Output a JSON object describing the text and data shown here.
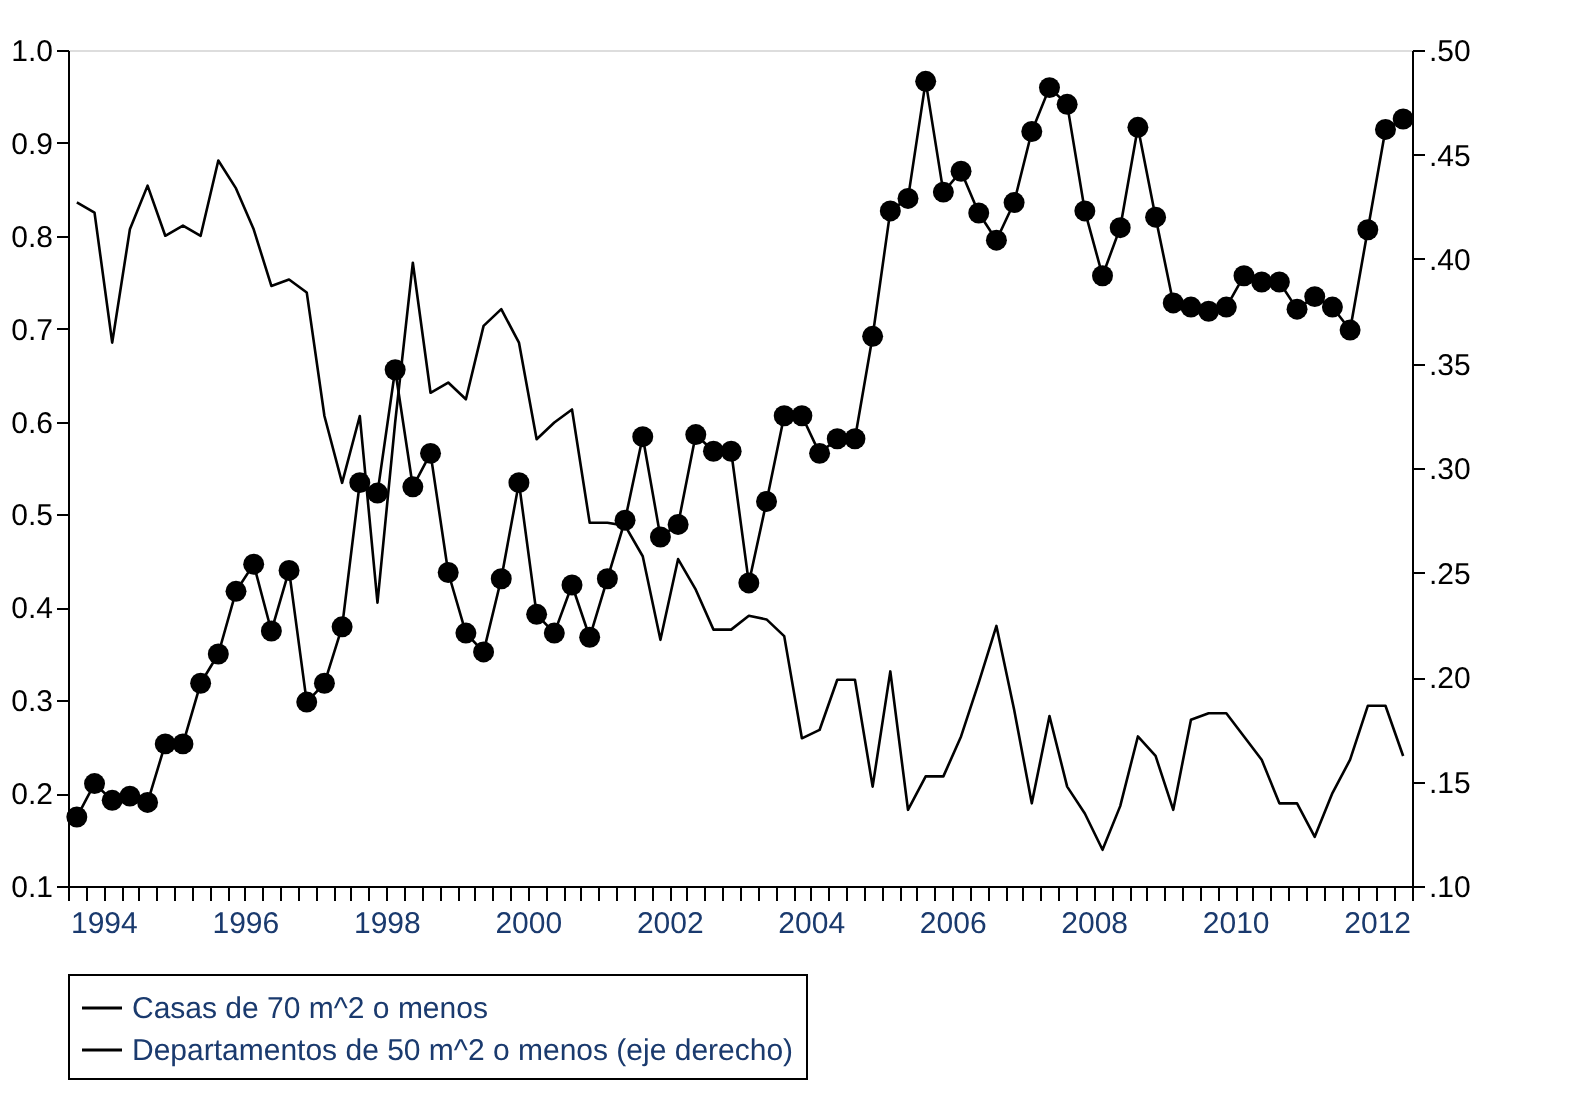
{
  "chart_data": {
    "type": "line",
    "x": [
      1994.125,
      1994.375,
      1994.625,
      1994.875,
      1995.125,
      1995.375,
      1995.625,
      1995.875,
      1996.125,
      1996.375,
      1996.625,
      1996.875,
      1997.125,
      1997.375,
      1997.625,
      1997.875,
      1998.125,
      1998.375,
      1998.625,
      1998.875,
      1999.125,
      1999.375,
      1999.625,
      1999.875,
      2000.125,
      2000.375,
      2000.625,
      2000.875,
      2001.125,
      2001.375,
      2001.625,
      2001.875,
      2002.125,
      2002.375,
      2002.625,
      2002.875,
      2003.125,
      2003.375,
      2003.625,
      2003.875,
      2004.125,
      2004.375,
      2004.625,
      2004.875,
      2005.125,
      2005.375,
      2005.625,
      2005.875,
      2006.125,
      2006.375,
      2006.625,
      2006.875,
      2007.125,
      2007.375,
      2007.625,
      2007.875,
      2008.125,
      2008.375,
      2008.625,
      2008.875,
      2009.125,
      2009.375,
      2009.625,
      2009.875,
      2010.125,
      2010.375,
      2010.625,
      2010.875,
      2011.125,
      2011.375,
      2011.625,
      2011.875,
      2012.125,
      2012.375,
      2012.625,
      2012.875
    ],
    "series": [
      {
        "name": "Casas de 70 m^2 o menos",
        "type": "line",
        "color": "#000000",
        "marker": "none",
        "values": [
          0.836,
          0.825,
          0.685,
          0.807,
          0.854,
          0.8,
          0.811,
          0.8,
          0.881,
          0.851,
          0.807,
          0.746,
          0.753,
          0.739,
          0.606,
          0.534,
          0.606,
          0.405,
          0.599,
          0.771,
          0.631,
          0.642,
          0.624,
          0.703,
          0.721,
          0.685,
          0.581,
          0.599,
          0.613,
          0.491,
          0.491,
          0.488,
          0.455,
          0.365,
          0.452,
          0.419,
          0.376,
          0.376,
          0.391,
          0.387,
          0.369,
          0.259,
          0.268,
          0.322,
          0.322,
          0.207,
          0.331,
          0.182,
          0.218,
          0.218,
          0.261,
          0.319,
          0.38,
          0.29,
          0.189,
          0.283,
          0.207,
          0.178,
          0.139,
          0.186,
          0.261,
          0.24,
          0.182,
          0.279,
          0.286,
          0.286,
          0.261,
          0.236,
          0.189,
          0.189,
          0.153,
          0.2,
          0.236,
          0.294,
          0.294,
          0.24
        ]
      },
      {
        "name": "Departamentos de 50 m^2 o menos (eje derecho)",
        "type": "line",
        "color": "#000000",
        "marker": "circle",
        "axis": "y2",
        "values": [
          0.133,
          0.149,
          0.141,
          0.143,
          0.14,
          0.168,
          0.168,
          0.197,
          0.211,
          0.241,
          0.254,
          0.222,
          0.251,
          0.188,
          0.197,
          0.224,
          0.293,
          0.288,
          0.347,
          0.291,
          0.307,
          0.25,
          0.221,
          0.212,
          0.247,
          0.293,
          0.23,
          0.221,
          0.244,
          0.219,
          0.247,
          0.275,
          0.315,
          0.267,
          0.273,
          0.316,
          0.308,
          0.308,
          0.245,
          0.284,
          0.325,
          0.325,
          0.307,
          0.314,
          0.314,
          0.363,
          0.423,
          0.429,
          0.485,
          0.432,
          0.442,
          0.422,
          0.409,
          0.427,
          0.461,
          0.482,
          0.474,
          0.423,
          0.392,
          0.415,
          0.463,
          0.42,
          0.379,
          0.377,
          0.375,
          0.377,
          0.392,
          0.389,
          0.389,
          0.376,
          0.382,
          0.377,
          0.366,
          0.414,
          0.462,
          0.467
        ]
      }
    ],
    "xlim": [
      1994,
      2013
    ],
    "xticks": [
      {
        "value": 1994,
        "label": null
      },
      {
        "value": 1994.25,
        "label": null
      },
      {
        "value": 1994.5,
        "label": "1994"
      },
      {
        "value": 1994.75,
        "label": null
      },
      {
        "value": 1995,
        "label": null
      },
      {
        "value": 1995.25,
        "label": null
      },
      {
        "value": 1995.5,
        "label": null
      },
      {
        "value": 1995.75,
        "label": null
      },
      {
        "value": 1996,
        "label": null
      },
      {
        "value": 1996.25,
        "label": null
      },
      {
        "value": 1996.5,
        "label": "1996"
      },
      {
        "value": 1996.75,
        "label": null
      },
      {
        "value": 1997,
        "label": null
      },
      {
        "value": 1997.25,
        "label": null
      },
      {
        "value": 1997.5,
        "label": null
      },
      {
        "value": 1997.75,
        "label": null
      },
      {
        "value": 1998,
        "label": null
      },
      {
        "value": 1998.25,
        "label": null
      },
      {
        "value": 1998.5,
        "label": "1998"
      },
      {
        "value": 1998.75,
        "label": null
      },
      {
        "value": 1999,
        "label": null
      },
      {
        "value": 1999.25,
        "label": null
      },
      {
        "value": 1999.5,
        "label": null
      },
      {
        "value": 1999.75,
        "label": null
      },
      {
        "value": 2000,
        "label": null
      },
      {
        "value": 2000.25,
        "label": null
      },
      {
        "value": 2000.5,
        "label": "2000"
      },
      {
        "value": 2000.75,
        "label": null
      },
      {
        "value": 2001,
        "label": null
      },
      {
        "value": 2001.25,
        "label": null
      },
      {
        "value": 2001.5,
        "label": null
      },
      {
        "value": 2001.75,
        "label": null
      },
      {
        "value": 2002,
        "label": null
      },
      {
        "value": 2002.25,
        "label": null
      },
      {
        "value": 2002.5,
        "label": "2002"
      },
      {
        "value": 2002.75,
        "label": null
      },
      {
        "value": 2003,
        "label": null
      },
      {
        "value": 2003.25,
        "label": null
      },
      {
        "value": 2003.5,
        "label": null
      },
      {
        "value": 2003.75,
        "label": null
      },
      {
        "value": 2004,
        "label": null
      },
      {
        "value": 2004.25,
        "label": null
      },
      {
        "value": 2004.5,
        "label": "2004"
      },
      {
        "value": 2004.75,
        "label": null
      },
      {
        "value": 2005,
        "label": null
      },
      {
        "value": 2005.25,
        "label": null
      },
      {
        "value": 2005.5,
        "label": null
      },
      {
        "value": 2005.75,
        "label": null
      },
      {
        "value": 2006,
        "label": null
      },
      {
        "value": 2006.25,
        "label": null
      },
      {
        "value": 2006.5,
        "label": "2006"
      },
      {
        "value": 2006.75,
        "label": null
      },
      {
        "value": 2007,
        "label": null
      },
      {
        "value": 2007.25,
        "label": null
      },
      {
        "value": 2007.5,
        "label": null
      },
      {
        "value": 2007.75,
        "label": null
      },
      {
        "value": 2008,
        "label": null
      },
      {
        "value": 2008.25,
        "label": null
      },
      {
        "value": 2008.5,
        "label": "2008"
      },
      {
        "value": 2008.75,
        "label": null
      },
      {
        "value": 2009,
        "label": null
      },
      {
        "value": 2009.25,
        "label": null
      },
      {
        "value": 2009.5,
        "label": null
      },
      {
        "value": 2009.75,
        "label": null
      },
      {
        "value": 2010,
        "label": null
      },
      {
        "value": 2010.25,
        "label": null
      },
      {
        "value": 2010.5,
        "label": "2010"
      },
      {
        "value": 2010.75,
        "label": null
      },
      {
        "value": 2011,
        "label": null
      },
      {
        "value": 2011.25,
        "label": null
      },
      {
        "value": 2011.5,
        "label": null
      },
      {
        "value": 2011.75,
        "label": null
      },
      {
        "value": 2012,
        "label": null
      },
      {
        "value": 2012.25,
        "label": null
      },
      {
        "value": 2012.5,
        "label": "2012"
      },
      {
        "value": 2012.75,
        "label": null
      },
      {
        "value": 2013,
        "label": null
      }
    ],
    "ylim": [
      0.1,
      1.0
    ],
    "yticks": [
      {
        "value": 0.1,
        "label": "0.1"
      },
      {
        "value": 0.2,
        "label": "0.2"
      },
      {
        "value": 0.3,
        "label": "0.3"
      },
      {
        "value": 0.4,
        "label": "0.4"
      },
      {
        "value": 0.5,
        "label": "0.5"
      },
      {
        "value": 0.6,
        "label": "0.6"
      },
      {
        "value": 0.7,
        "label": "0.7"
      },
      {
        "value": 0.8,
        "label": "0.8"
      },
      {
        "value": 0.9,
        "label": "0.9"
      },
      {
        "value": 1,
        "label": "1.0"
      }
    ],
    "y2lim": [
      0.1,
      0.5
    ],
    "y2ticks": [
      {
        "value": 0.1,
        "label": ".10"
      },
      {
        "value": 0.15,
        "label": ".15"
      },
      {
        "value": 0.2,
        "label": ".20"
      },
      {
        "value": 0.25,
        "label": ".25"
      },
      {
        "value": 0.3,
        "label": ".30"
      },
      {
        "value": 0.35,
        "label": ".35"
      },
      {
        "value": 0.4,
        "label": ".40"
      },
      {
        "value": 0.45,
        "label": ".45"
      },
      {
        "value": 0.5,
        "label": ".50"
      }
    ],
    "legend": "bottom"
  }
}
